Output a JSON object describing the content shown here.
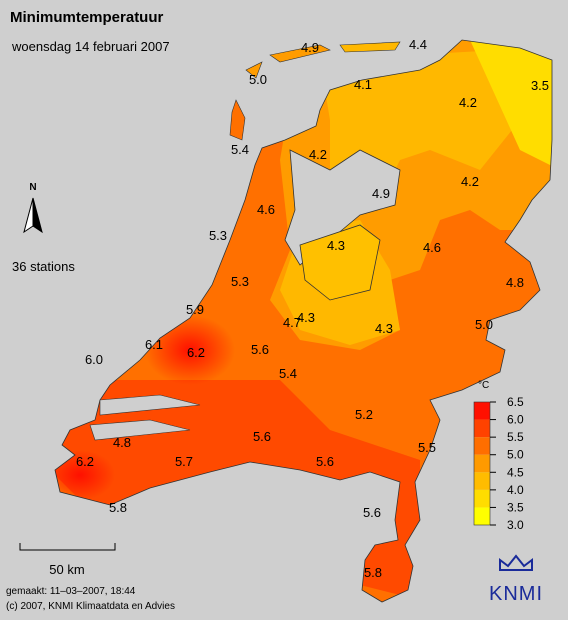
{
  "header": {
    "title": "Minimumtemperatuur",
    "subtitle": "woensdag 14 februari 2007"
  },
  "north": "N",
  "station_count": "36 stations",
  "scale": "50 km",
  "legend": {
    "unit": "°C",
    "ticks": [
      "6.5",
      "6.0",
      "5.5",
      "5.0",
      "4.5",
      "4.0",
      "3.5",
      "3.0"
    ]
  },
  "stations": [
    "4.9",
    "4.4",
    "5.0",
    "4.1",
    "3.5",
    "4.2",
    "5.4",
    "4.2",
    "4.9",
    "4.2",
    "4.6",
    "5.3",
    "4.3",
    "4.6",
    "4.8",
    "5.3",
    "5.9",
    "4.7",
    "4.3",
    "4.3",
    "5.0",
    "6.1",
    "6.2",
    "5.6",
    "6.0",
    "5.4",
    "5.2",
    "5.6",
    "4.8",
    "5.5",
    "5.7",
    "5.6",
    "6.2",
    "5.8",
    "5.6",
    "5.8"
  ],
  "footer": {
    "made": "gemaakt: 11–03–2007, 18:44",
    "copyright": "(c) 2007, KNMI Klimaatdata en Advies"
  },
  "logo": "KNMI"
}
